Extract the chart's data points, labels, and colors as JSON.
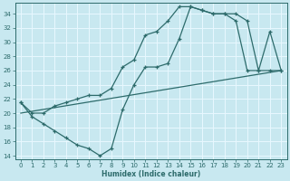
{
  "xlabel": "Humidex (Indice chaleur)",
  "xlim": [
    -0.5,
    23.5
  ],
  "ylim": [
    13.5,
    35.5
  ],
  "yticks": [
    14,
    16,
    18,
    20,
    22,
    24,
    26,
    28,
    30,
    32,
    34
  ],
  "xticks": [
    0,
    1,
    2,
    3,
    4,
    5,
    6,
    7,
    8,
    9,
    10,
    11,
    12,
    13,
    14,
    15,
    16,
    17,
    18,
    19,
    20,
    21,
    22,
    23
  ],
  "bg_color": "#c8e8f0",
  "line_color": "#2d6b6b",
  "grid_color": "#e8f8ff",
  "line1_x": [
    0,
    1,
    2,
    3,
    4,
    5,
    6,
    7,
    8,
    9,
    10,
    11,
    12,
    13,
    14,
    15,
    16,
    17,
    18,
    19,
    20,
    21,
    22,
    23
  ],
  "line1_y": [
    21.5,
    19.5,
    18.5,
    17.5,
    16.5,
    15.5,
    15.0,
    14.0,
    15.0,
    20.5,
    24.0,
    26.5,
    26.5,
    27.0,
    30.5,
    35.0,
    34.5,
    34.0,
    34.0,
    34.0,
    33.0,
    26.0,
    31.5,
    26.0
  ],
  "line2_x": [
    0,
    1,
    2,
    3,
    4,
    5,
    6,
    7,
    8,
    9,
    10,
    11,
    12,
    13,
    14,
    15,
    16,
    17,
    18,
    19,
    20,
    21,
    22,
    23
  ],
  "line2_y": [
    21.5,
    20.0,
    20.0,
    21.0,
    21.5,
    22.0,
    22.5,
    22.5,
    23.5,
    26.5,
    27.5,
    31.0,
    31.5,
    33.0,
    35.0,
    35.0,
    34.5,
    34.0,
    34.0,
    33.0,
    26.0,
    26.0,
    26.0,
    26.0
  ],
  "line3_x": [
    0,
    23
  ],
  "line3_y": [
    20.0,
    26.0
  ]
}
